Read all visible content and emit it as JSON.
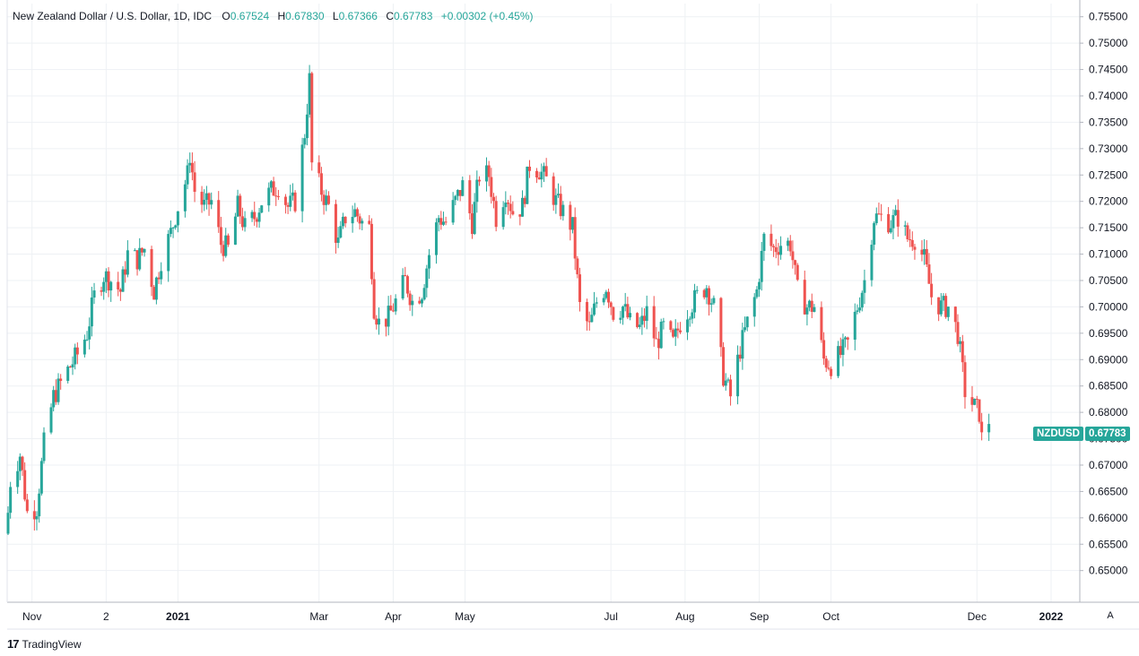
{
  "legend": {
    "symbol": "New Zealand Dollar / U.S. Dollar, 1D, IDC",
    "o_label": "O",
    "o_value": "0.67524",
    "h_label": "H",
    "h_value": "0.67830",
    "l_label": "L",
    "l_value": "0.67366",
    "c_label": "C",
    "c_value": "0.67783",
    "change": "+0.00302 (+0.45%)"
  },
  "price_tag": {
    "ticker": "NZDUSD",
    "last": "0.67783"
  },
  "footer": {
    "logo_text": "TradingView",
    "auto_label": "A"
  },
  "colors": {
    "up": "#26a69a",
    "down": "#ef5350",
    "grid": "#eef1f4",
    "axis_text": "#131722"
  },
  "chart_data": {
    "type": "candlestick",
    "title": "New Zealand Dollar / U.S. Dollar, 1D, IDC",
    "ylim": [
      0.644,
      0.7575
    ],
    "y_ticks": [
      "0.75500",
      "0.75000",
      "0.74500",
      "0.74000",
      "0.73500",
      "0.73000",
      "0.72500",
      "0.72000",
      "0.71500",
      "0.71000",
      "0.70500",
      "0.70000",
      "0.69500",
      "0.69000",
      "0.68500",
      "0.68000",
      "0.67500",
      "0.67000",
      "0.66500",
      "0.66000",
      "0.65500",
      "0.65000"
    ],
    "x_ticks": [
      {
        "label": "Nov",
        "date": "2020-11-01"
      },
      {
        "label": "2",
        "date": "2020-12-02"
      },
      {
        "label": "2021",
        "date": "2021-01-01"
      },
      {
        "label": "Mar",
        "date": "2021-03-01"
      },
      {
        "label": "Apr",
        "date": "2021-04-01"
      },
      {
        "label": "May",
        "date": "2021-05-01"
      },
      {
        "label": "Jul",
        "date": "2021-07-01"
      },
      {
        "label": "Aug",
        "date": "2021-08-01"
      },
      {
        "label": "Sep",
        "date": "2021-09-01"
      },
      {
        "label": "Oct",
        "date": "2021-10-01"
      },
      {
        "label": "Dec",
        "date": "2021-12-01"
      },
      {
        "label": "2022",
        "date": "2022-01-01"
      }
    ],
    "close_path": [
      {
        "date": "2020-10-22",
        "close": 0.661
      },
      {
        "date": "2020-10-23",
        "close": 0.667
      },
      {
        "date": "2020-10-27",
        "close": 0.672
      },
      {
        "date": "2020-10-30",
        "close": 0.661
      },
      {
        "date": "2020-11-03",
        "close": 0.662
      },
      {
        "date": "2020-11-06",
        "close": 0.674
      },
      {
        "date": "2020-11-10",
        "close": 0.683
      },
      {
        "date": "2020-11-16",
        "close": 0.688
      },
      {
        "date": "2020-11-20",
        "close": 0.691
      },
      {
        "date": "2020-11-24",
        "close": 0.695
      },
      {
        "date": "2020-11-27",
        "close": 0.702
      },
      {
        "date": "2020-12-01",
        "close": 0.706
      },
      {
        "date": "2020-12-04",
        "close": 0.705
      },
      {
        "date": "2020-12-08",
        "close": 0.703
      },
      {
        "date": "2020-12-11",
        "close": 0.71
      },
      {
        "date": "2020-12-15",
        "close": 0.709
      },
      {
        "date": "2020-12-18",
        "close": 0.711
      },
      {
        "date": "2020-12-22",
        "close": 0.703
      },
      {
        "date": "2020-12-25",
        "close": 0.709
      },
      {
        "date": "2020-12-29",
        "close": 0.714
      },
      {
        "date": "2021-01-01",
        "close": 0.719
      },
      {
        "date": "2021-01-05",
        "close": 0.725
      },
      {
        "date": "2021-01-06",
        "close": 0.729
      },
      {
        "date": "2021-01-08",
        "close": 0.722
      },
      {
        "date": "2021-01-12",
        "close": 0.719
      },
      {
        "date": "2021-01-15",
        "close": 0.72
      },
      {
        "date": "2021-01-19",
        "close": 0.712
      },
      {
        "date": "2021-01-22",
        "close": 0.711
      },
      {
        "date": "2021-01-26",
        "close": 0.719
      },
      {
        "date": "2021-01-29",
        "close": 0.715
      },
      {
        "date": "2021-02-02",
        "close": 0.717
      },
      {
        "date": "2021-02-05",
        "close": 0.72
      },
      {
        "date": "2021-02-09",
        "close": 0.722
      },
      {
        "date": "2021-02-12",
        "close": 0.723
      },
      {
        "date": "2021-02-16",
        "close": 0.719
      },
      {
        "date": "2021-02-19",
        "close": 0.72
      },
      {
        "date": "2021-02-23",
        "close": 0.733
      },
      {
        "date": "2021-02-24",
        "close": 0.738
      },
      {
        "date": "2021-02-25",
        "close": 0.743
      },
      {
        "date": "2021-02-26",
        "close": 0.727
      },
      {
        "date": "2021-03-02",
        "close": 0.722
      },
      {
        "date": "2021-03-05",
        "close": 0.719
      },
      {
        "date": "2021-03-09",
        "close": 0.712
      },
      {
        "date": "2021-03-12",
        "close": 0.717
      },
      {
        "date": "2021-03-16",
        "close": 0.718
      },
      {
        "date": "2021-03-19",
        "close": 0.716
      },
      {
        "date": "2021-03-22",
        "close": 0.715
      },
      {
        "date": "2021-03-24",
        "close": 0.7
      },
      {
        "date": "2021-03-26",
        "close": 0.697
      },
      {
        "date": "2021-03-30",
        "close": 0.698
      },
      {
        "date": "2021-04-02",
        "close": 0.701
      },
      {
        "date": "2021-04-06",
        "close": 0.705
      },
      {
        "date": "2021-04-09",
        "close": 0.701
      },
      {
        "date": "2021-04-13",
        "close": 0.703
      },
      {
        "date": "2021-04-16",
        "close": 0.71
      },
      {
        "date": "2021-04-20",
        "close": 0.717
      },
      {
        "date": "2021-04-23",
        "close": 0.716
      },
      {
        "date": "2021-04-27",
        "close": 0.72
      },
      {
        "date": "2021-04-30",
        "close": 0.723
      },
      {
        "date": "2021-05-04",
        "close": 0.716
      },
      {
        "date": "2021-05-07",
        "close": 0.725
      },
      {
        "date": "2021-05-11",
        "close": 0.725
      },
      {
        "date": "2021-05-14",
        "close": 0.717
      },
      {
        "date": "2021-05-18",
        "close": 0.722
      },
      {
        "date": "2021-05-21",
        "close": 0.718
      },
      {
        "date": "2021-05-25",
        "close": 0.719
      },
      {
        "date": "2021-05-28",
        "close": 0.727
      },
      {
        "date": "2021-06-01",
        "close": 0.726
      },
      {
        "date": "2021-06-04",
        "close": 0.724
      },
      {
        "date": "2021-06-08",
        "close": 0.72
      },
      {
        "date": "2021-06-11",
        "close": 0.718
      },
      {
        "date": "2021-06-15",
        "close": 0.715
      },
      {
        "date": "2021-06-18",
        "close": 0.7
      },
      {
        "date": "2021-06-22",
        "close": 0.696
      },
      {
        "date": "2021-06-25",
        "close": 0.701
      },
      {
        "date": "2021-06-29",
        "close": 0.704
      },
      {
        "date": "2021-07-02",
        "close": 0.699
      },
      {
        "date": "2021-07-06",
        "close": 0.7
      },
      {
        "date": "2021-07-09",
        "close": 0.697
      },
      {
        "date": "2021-07-13",
        "close": 0.696
      },
      {
        "date": "2021-07-16",
        "close": 0.699
      },
      {
        "date": "2021-07-20",
        "close": 0.693
      },
      {
        "date": "2021-07-23",
        "close": 0.696
      },
      {
        "date": "2021-07-27",
        "close": 0.693
      },
      {
        "date": "2021-07-30",
        "close": 0.697
      },
      {
        "date": "2021-08-03",
        "close": 0.7
      },
      {
        "date": "2021-08-06",
        "close": 0.702
      },
      {
        "date": "2021-08-10",
        "close": 0.704
      },
      {
        "date": "2021-08-13",
        "close": 0.7
      },
      {
        "date": "2021-08-17",
        "close": 0.687
      },
      {
        "date": "2021-08-20",
        "close": 0.683
      },
      {
        "date": "2021-08-24",
        "close": 0.692
      },
      {
        "date": "2021-08-27",
        "close": 0.697
      },
      {
        "date": "2021-08-31",
        "close": 0.703
      },
      {
        "date": "2021-09-03",
        "close": 0.713
      },
      {
        "date": "2021-09-07",
        "close": 0.711
      },
      {
        "date": "2021-09-10",
        "close": 0.712
      },
      {
        "date": "2021-09-14",
        "close": 0.712
      },
      {
        "date": "2021-09-17",
        "close": 0.703
      },
      {
        "date": "2021-09-21",
        "close": 0.7
      },
      {
        "date": "2021-09-24",
        "close": 0.7
      },
      {
        "date": "2021-09-28",
        "close": 0.69
      },
      {
        "date": "2021-10-01",
        "close": 0.689
      },
      {
        "date": "2021-10-05",
        "close": 0.691
      },
      {
        "date": "2021-10-08",
        "close": 0.693
      },
      {
        "date": "2021-10-12",
        "close": 0.7
      },
      {
        "date": "2021-10-15",
        "close": 0.705
      },
      {
        "date": "2021-10-19",
        "close": 0.717
      },
      {
        "date": "2021-10-22",
        "close": 0.717
      },
      {
        "date": "2021-10-26",
        "close": 0.716
      },
      {
        "date": "2021-10-29",
        "close": 0.717
      },
      {
        "date": "2021-11-02",
        "close": 0.713
      },
      {
        "date": "2021-11-05",
        "close": 0.713
      },
      {
        "date": "2021-11-09",
        "close": 0.709
      },
      {
        "date": "2021-11-12",
        "close": 0.702
      },
      {
        "date": "2021-11-16",
        "close": 0.7
      },
      {
        "date": "2021-11-19",
        "close": 0.7
      },
      {
        "date": "2021-11-23",
        "close": 0.695
      },
      {
        "date": "2021-11-26",
        "close": 0.684
      },
      {
        "date": "2021-11-30",
        "close": 0.681
      },
      {
        "date": "2021-12-02",
        "close": 0.68
      },
      {
        "date": "2021-12-03",
        "close": 0.675
      },
      {
        "date": "2021-12-06",
        "close": 0.6778
      }
    ]
  }
}
